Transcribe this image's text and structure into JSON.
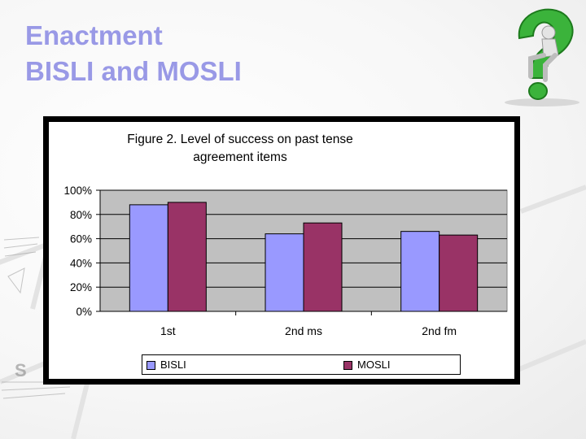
{
  "slide": {
    "title_line1": "Enactment",
    "title_line2": "BISLI and MOSLI"
  },
  "icons": {
    "question_figure": "question-mark-person-icon",
    "background": "compass-decoration"
  },
  "colors": {
    "title": "#9999e6",
    "plot_area": "#c0c0c0",
    "series_bisli": "#9999ff",
    "series_mosli": "#993366"
  },
  "chart_data": {
    "type": "bar",
    "title_line1": "Figure 2. Level of success on past tense",
    "title_line2": "agreement items",
    "categories": [
      "1st",
      "2nd ms",
      "2nd fm"
    ],
    "series": [
      {
        "name": "BISLI",
        "values": [
          88,
          64,
          66
        ],
        "color": "#9999ff"
      },
      {
        "name": "MOSLI",
        "values": [
          90,
          73,
          63
        ],
        "color": "#993366"
      }
    ],
    "ylim": [
      0,
      100
    ],
    "yticks": [
      "0%",
      "20%",
      "40%",
      "60%",
      "80%",
      "100%"
    ],
    "ytick_values": [
      0,
      20,
      40,
      60,
      80,
      100
    ],
    "grid": true,
    "legend_position": "bottom"
  }
}
